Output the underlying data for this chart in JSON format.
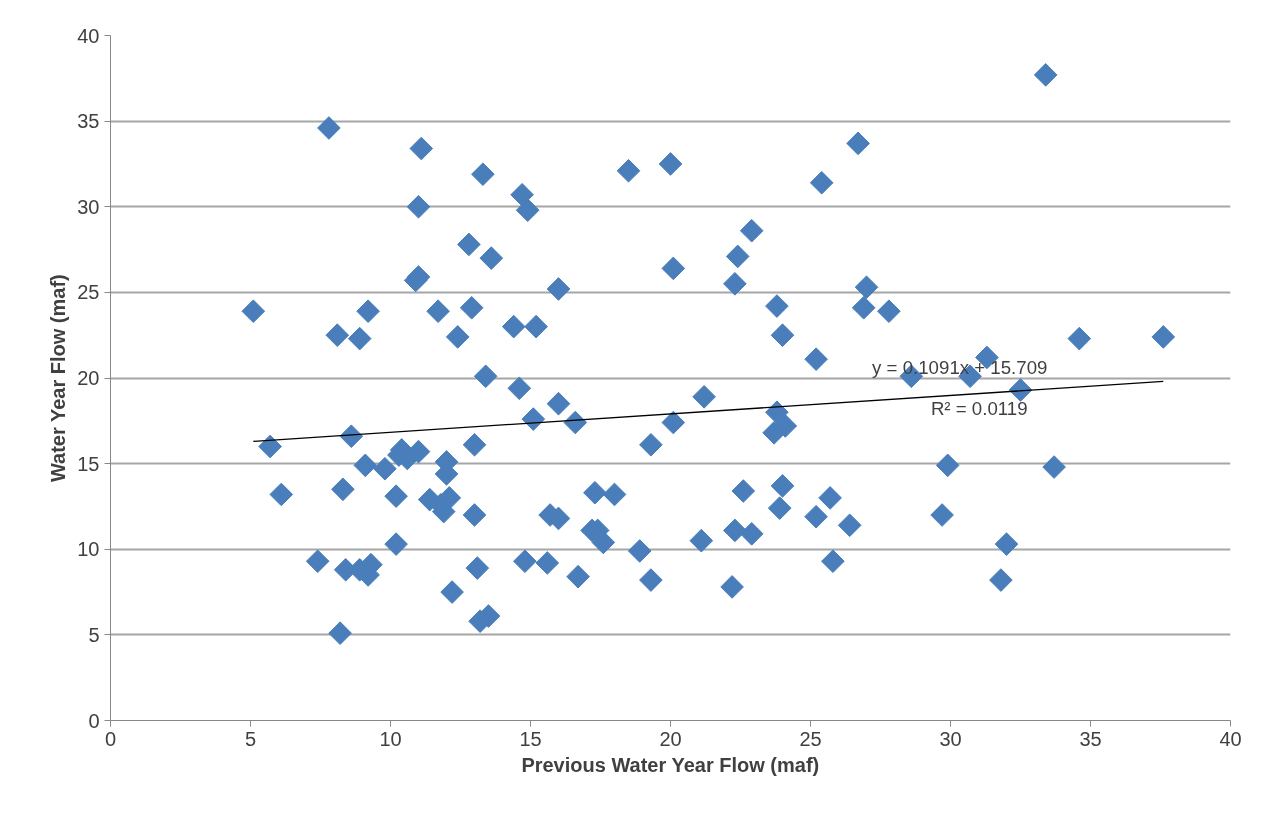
{
  "chart_data": {
    "type": "scatter",
    "xlabel": "Previous Water Year Flow (maf)",
    "ylabel": "Water Year Flow (maf)",
    "xlim": [
      0,
      40
    ],
    "xticks": [
      0,
      5,
      10,
      15,
      20,
      25,
      30,
      35,
      40
    ],
    "ylim": [
      0,
      40
    ],
    "yticks": [
      0,
      5,
      10,
      15,
      20,
      25,
      30,
      35,
      40
    ],
    "grid": "y",
    "series": [
      {
        "marker": "diamond",
        "color": "#4a7ebb",
        "x": [
          5.1,
          5.7,
          6.1,
          7.4,
          7.8,
          8.1,
          8.2,
          8.3,
          8.4,
          8.6,
          8.9,
          8.9,
          9.1,
          9.2,
          9.2,
          9.3,
          9.8,
          10.2,
          10.2,
          10.3,
          10.4,
          10.6,
          10.9,
          11.0,
          11.0,
          11.0,
          11.1,
          11.4,
          11.7,
          11.8,
          11.9,
          12.0,
          12.0,
          12.1,
          12.2,
          12.4,
          12.8,
          12.9,
          13.0,
          13.0,
          13.1,
          13.2,
          13.3,
          13.4,
          13.5,
          13.6,
          14.4,
          14.6,
          14.7,
          14.8,
          14.9,
          15.1,
          15.2,
          15.6,
          15.7,
          16.0,
          16.0,
          16.0,
          16.6,
          16.7,
          17.2,
          17.3,
          17.4,
          17.6,
          18.0,
          18.5,
          18.9,
          19.3,
          19.3,
          20.0,
          20.1,
          20.1,
          21.1,
          21.2,
          22.2,
          22.3,
          22.3,
          22.4,
          22.6,
          22.9,
          22.9,
          23.8,
          23.8,
          23.7,
          23.9,
          24.0,
          24.1,
          24.0,
          25.2,
          25.2,
          25.4,
          25.7,
          25.8,
          26.4,
          26.7,
          26.9,
          27.0,
          27.8,
          28.6,
          29.7,
          29.9,
          30.7,
          31.3,
          31.8,
          32.0,
          32.5,
          33.4,
          33.7,
          34.6,
          37.6
        ],
        "values": [
          23.9,
          16.0,
          13.2,
          9.3,
          34.6,
          22.5,
          5.1,
          13.5,
          8.8,
          16.6,
          22.3,
          8.8,
          14.9,
          23.9,
          8.5,
          9.1,
          14.7,
          10.3,
          13.1,
          15.5,
          15.8,
          15.3,
          25.7,
          30.0,
          25.9,
          15.7,
          33.4,
          12.9,
          23.9,
          12.6,
          12.2,
          15.1,
          14.4,
          13.0,
          7.5,
          22.4,
          27.8,
          24.1,
          16.1,
          12.0,
          8.9,
          5.8,
          31.9,
          20.1,
          6.1,
          27.0,
          23.0,
          19.4,
          30.7,
          9.3,
          29.8,
          17.6,
          23.0,
          9.2,
          12.0,
          11.8,
          25.2,
          18.5,
          17.4,
          8.4,
          11.1,
          13.3,
          11.1,
          10.4,
          13.2,
          32.1,
          9.9,
          8.2,
          16.1,
          32.5,
          26.4,
          17.4,
          10.5,
          18.9,
          7.8,
          25.5,
          11.1,
          27.1,
          13.4,
          28.6,
          10.9,
          18.0,
          24.2,
          16.8,
          12.4,
          22.5,
          17.2,
          13.7,
          21.1,
          11.9,
          31.4,
          13.0,
          9.3,
          11.4,
          33.7,
          24.1,
          25.3,
          23.9,
          20.1,
          12.0,
          14.9,
          20.1,
          21.2,
          8.2,
          10.3,
          19.3,
          37.7,
          14.8,
          22.3,
          22.4
        ]
      },
      {
        "type": "line",
        "color": "#000000",
        "x": [
          5.1,
          37.6
        ],
        "values": [
          16.3,
          19.8
        ]
      }
    ],
    "annotations": [
      "y = 0.1091x + 15.709",
      "R² = 0.0119"
    ]
  }
}
